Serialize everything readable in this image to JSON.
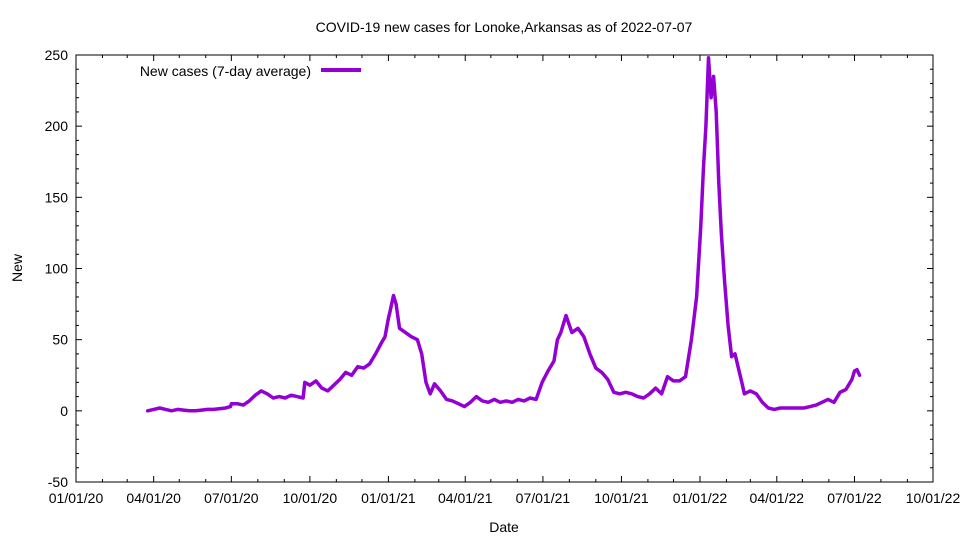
{
  "chart_data": {
    "type": "line",
    "title": "COVID-19 new cases for Lonoke,Arkansas as of 2022-07-07",
    "xlabel": "Date",
    "ylabel": "New",
    "x_range": [
      "2020-01-01",
      "2022-10-01"
    ],
    "ylim": [
      -50,
      250
    ],
    "x_ticks": [
      "01/01/20",
      "04/01/20",
      "07/01/20",
      "10/01/20",
      "01/01/21",
      "04/01/21",
      "07/01/21",
      "10/01/21",
      "01/01/22",
      "04/01/22",
      "07/01/22",
      "10/01/22"
    ],
    "y_ticks": [
      -50,
      0,
      50,
      100,
      150,
      200,
      250
    ],
    "grid": false,
    "legend_position": "top-left",
    "colors": {
      "series": "#9400d3",
      "axes": "#000000",
      "background": "#ffffff"
    },
    "series": [
      {
        "name": "New cases (7-day average)",
        "points": [
          [
            "2020-03-25",
            0
          ],
          [
            "2020-04-01",
            1
          ],
          [
            "2020-04-08",
            2
          ],
          [
            "2020-04-15",
            1
          ],
          [
            "2020-04-22",
            0
          ],
          [
            "2020-04-29",
            1
          ],
          [
            "2020-05-06",
            0.5
          ],
          [
            "2020-05-13",
            0
          ],
          [
            "2020-05-20",
            0
          ],
          [
            "2020-05-27",
            0.5
          ],
          [
            "2020-06-03",
            1
          ],
          [
            "2020-06-10",
            1
          ],
          [
            "2020-06-17",
            1.5
          ],
          [
            "2020-06-24",
            2
          ],
          [
            "2020-06-30",
            3
          ],
          [
            "2020-07-01",
            5
          ],
          [
            "2020-07-08",
            5
          ],
          [
            "2020-07-15",
            4
          ],
          [
            "2020-07-22",
            7
          ],
          [
            "2020-07-29",
            11
          ],
          [
            "2020-08-05",
            14
          ],
          [
            "2020-08-12",
            12
          ],
          [
            "2020-08-19",
            9
          ],
          [
            "2020-08-26",
            10
          ],
          [
            "2020-09-02",
            9
          ],
          [
            "2020-09-09",
            11
          ],
          [
            "2020-09-16",
            10
          ],
          [
            "2020-09-23",
            9
          ],
          [
            "2020-09-25",
            20
          ],
          [
            "2020-10-01",
            18
          ],
          [
            "2020-10-08",
            21
          ],
          [
            "2020-10-15",
            16
          ],
          [
            "2020-10-22",
            14
          ],
          [
            "2020-10-29",
            18
          ],
          [
            "2020-11-05",
            22
          ],
          [
            "2020-11-12",
            27
          ],
          [
            "2020-11-19",
            25
          ],
          [
            "2020-11-26",
            31
          ],
          [
            "2020-12-03",
            30
          ],
          [
            "2020-12-10",
            33
          ],
          [
            "2020-12-17",
            40
          ],
          [
            "2020-12-24",
            48
          ],
          [
            "2020-12-28",
            52
          ],
          [
            "2021-01-01",
            65
          ],
          [
            "2021-01-03",
            70
          ],
          [
            "2021-01-07",
            81
          ],
          [
            "2021-01-10",
            75
          ],
          [
            "2021-01-14",
            58
          ],
          [
            "2021-01-21",
            55
          ],
          [
            "2021-01-28",
            52
          ],
          [
            "2021-02-04",
            50
          ],
          [
            "2021-02-09",
            40
          ],
          [
            "2021-02-14",
            20
          ],
          [
            "2021-02-19",
            12
          ],
          [
            "2021-02-24",
            19
          ],
          [
            "2021-03-03",
            14
          ],
          [
            "2021-03-10",
            8
          ],
          [
            "2021-03-17",
            7
          ],
          [
            "2021-03-24",
            5
          ],
          [
            "2021-03-31",
            3
          ],
          [
            "2021-04-07",
            6
          ],
          [
            "2021-04-14",
            10
          ],
          [
            "2021-04-21",
            7
          ],
          [
            "2021-04-28",
            6
          ],
          [
            "2021-05-05",
            8
          ],
          [
            "2021-05-12",
            6
          ],
          [
            "2021-05-19",
            7
          ],
          [
            "2021-05-26",
            6
          ],
          [
            "2021-06-02",
            8
          ],
          [
            "2021-06-09",
            7
          ],
          [
            "2021-06-16",
            9
          ],
          [
            "2021-06-23",
            8
          ],
          [
            "2021-06-30",
            20
          ],
          [
            "2021-07-07",
            28
          ],
          [
            "2021-07-14",
            35
          ],
          [
            "2021-07-18",
            50
          ],
          [
            "2021-07-22",
            55
          ],
          [
            "2021-07-28",
            67
          ],
          [
            "2021-08-04",
            55
          ],
          [
            "2021-08-11",
            58
          ],
          [
            "2021-08-18",
            52
          ],
          [
            "2021-08-25",
            40
          ],
          [
            "2021-09-01",
            30
          ],
          [
            "2021-09-08",
            27
          ],
          [
            "2021-09-15",
            22
          ],
          [
            "2021-09-22",
            13
          ],
          [
            "2021-09-29",
            12
          ],
          [
            "2021-10-06",
            13
          ],
          [
            "2021-10-13",
            12
          ],
          [
            "2021-10-20",
            10
          ],
          [
            "2021-10-27",
            9
          ],
          [
            "2021-11-03",
            12
          ],
          [
            "2021-11-10",
            16
          ],
          [
            "2021-11-17",
            12
          ],
          [
            "2021-11-24",
            24
          ],
          [
            "2021-12-01",
            21
          ],
          [
            "2021-12-08",
            21
          ],
          [
            "2021-12-15",
            24
          ],
          [
            "2021-12-22",
            50
          ],
          [
            "2021-12-28",
            80
          ],
          [
            "2022-01-02",
            130
          ],
          [
            "2022-01-05",
            170
          ],
          [
            "2022-01-08",
            200
          ],
          [
            "2022-01-11",
            248
          ],
          [
            "2022-01-14",
            220
          ],
          [
            "2022-01-17",
            235
          ],
          [
            "2022-01-20",
            210
          ],
          [
            "2022-01-23",
            160
          ],
          [
            "2022-01-26",
            125
          ],
          [
            "2022-01-30",
            90
          ],
          [
            "2022-02-03",
            60
          ],
          [
            "2022-02-07",
            38
          ],
          [
            "2022-02-11",
            40
          ],
          [
            "2022-02-15",
            30
          ],
          [
            "2022-02-19",
            20
          ],
          [
            "2022-02-22",
            12
          ],
          [
            "2022-03-01",
            14
          ],
          [
            "2022-03-08",
            12
          ],
          [
            "2022-03-15",
            6
          ],
          [
            "2022-03-22",
            2
          ],
          [
            "2022-03-29",
            1
          ],
          [
            "2022-04-05",
            2
          ],
          [
            "2022-04-12",
            2
          ],
          [
            "2022-04-19",
            2
          ],
          [
            "2022-04-26",
            2
          ],
          [
            "2022-05-03",
            2
          ],
          [
            "2022-05-10",
            3
          ],
          [
            "2022-05-17",
            4
          ],
          [
            "2022-05-24",
            6
          ],
          [
            "2022-05-31",
            8
          ],
          [
            "2022-06-07",
            6
          ],
          [
            "2022-06-14",
            13
          ],
          [
            "2022-06-21",
            15
          ],
          [
            "2022-06-28",
            22
          ],
          [
            "2022-07-01",
            28
          ],
          [
            "2022-07-04",
            29
          ],
          [
            "2022-07-07",
            25
          ]
        ]
      }
    ]
  }
}
